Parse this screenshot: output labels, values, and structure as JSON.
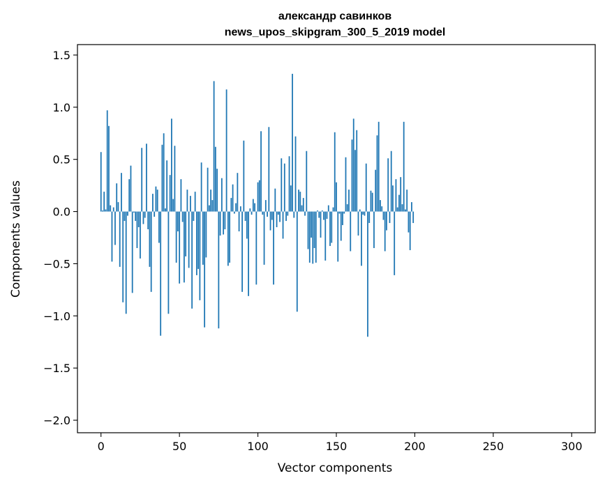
{
  "chart_data": {
    "type": "bar",
    "title": "александр савинков",
    "subtitle": "news_upos_skipgram_300_5_2019 model",
    "xlabel": "Vector components",
    "ylabel": "Components values",
    "xlim": [
      -15,
      315
    ],
    "ylim": [
      -2.12,
      1.6
    ],
    "xticks": [
      0,
      50,
      100,
      150,
      200,
      250,
      300
    ],
    "yticks": [
      -2.0,
      -1.5,
      -1.0,
      -0.5,
      0.0,
      0.5,
      1.0,
      1.5
    ],
    "ytick_labels": [
      "−2.0",
      "−1.5",
      "−1.0",
      "−0.5",
      "0.0",
      "0.5",
      "1.0",
      "1.5"
    ],
    "grid": false,
    "bar_color": "#1f77b4",
    "values": [
      0.57,
      0.01,
      0.19,
      0.02,
      0.97,
      0.82,
      0.06,
      -0.48,
      0.04,
      -0.32,
      0.27,
      0.09,
      -0.53,
      0.37,
      -0.87,
      -0.09,
      -0.98,
      -0.04,
      0.31,
      0.44,
      -0.78,
      -0.01,
      -0.09,
      -0.35,
      -0.15,
      -0.45,
      0.61,
      -0.12,
      -0.06,
      0.65,
      -0.17,
      -0.53,
      -0.77,
      0.17,
      -0.05,
      0.24,
      0.21,
      -0.3,
      -1.19,
      0.64,
      0.75,
      0.03,
      0.49,
      -0.98,
      0.35,
      0.89,
      0.12,
      0.63,
      -0.49,
      -0.19,
      -0.69,
      0.31,
      -0.1,
      -0.68,
      -0.43,
      0.21,
      -0.54,
      0.15,
      -0.93,
      -0.09,
      0.19,
      -0.61,
      -0.55,
      -0.85,
      0.47,
      -0.51,
      -1.11,
      -0.44,
      0.42,
      0.06,
      0.21,
      0.11,
      1.25,
      0.62,
      0.41,
      -1.12,
      -0.23,
      0.32,
      -0.22,
      -0.17,
      1.17,
      -0.52,
      -0.49,
      0.13,
      0.26,
      -0.02,
      0.08,
      0.37,
      -0.19,
      0.05,
      -0.77,
      0.68,
      -0.09,
      -0.26,
      -0.81,
      0.03,
      -0.03,
      0.12,
      0.08,
      -0.7,
      0.28,
      0.3,
      0.77,
      -0.03,
      -0.51,
      0.11,
      -0.05,
      0.81,
      -0.18,
      -0.08,
      -0.7,
      0.22,
      -0.15,
      -0.03,
      -0.1,
      0.51,
      -0.26,
      0.46,
      -0.09,
      -0.04,
      0.53,
      0.25,
      1.32,
      -0.06,
      0.72,
      -0.96,
      0.21,
      0.19,
      0.06,
      0.13,
      -0.04,
      0.58,
      -0.36,
      -0.49,
      -0.25,
      -0.5,
      -0.35,
      -0.49,
      0.01,
      -0.06,
      -0.25,
      0.01,
      -0.08,
      -0.47,
      -0.07,
      0.06,
      -0.33,
      -0.3,
      0.04,
      0.76,
      0.28,
      -0.48,
      -0.02,
      -0.28,
      -0.13,
      -0.02,
      0.52,
      0.07,
      0.21,
      -0.38,
      0.69,
      0.89,
      0.59,
      0.78,
      -0.23,
      0.02,
      -0.52,
      -0.03,
      -0.04,
      0.46,
      -1.2,
      -0.11,
      0.2,
      0.18,
      -0.35,
      0.4,
      0.73,
      0.86,
      0.11,
      0.05,
      -0.08,
      -0.38,
      -0.18,
      0.51,
      -0.11,
      0.58,
      0.25,
      -0.61,
      0.31,
      0.04,
      0.16,
      0.33,
      0.07,
      0.86,
      0.02,
      0.21,
      -0.2,
      -0.37,
      0.09,
      -0.11
    ]
  }
}
